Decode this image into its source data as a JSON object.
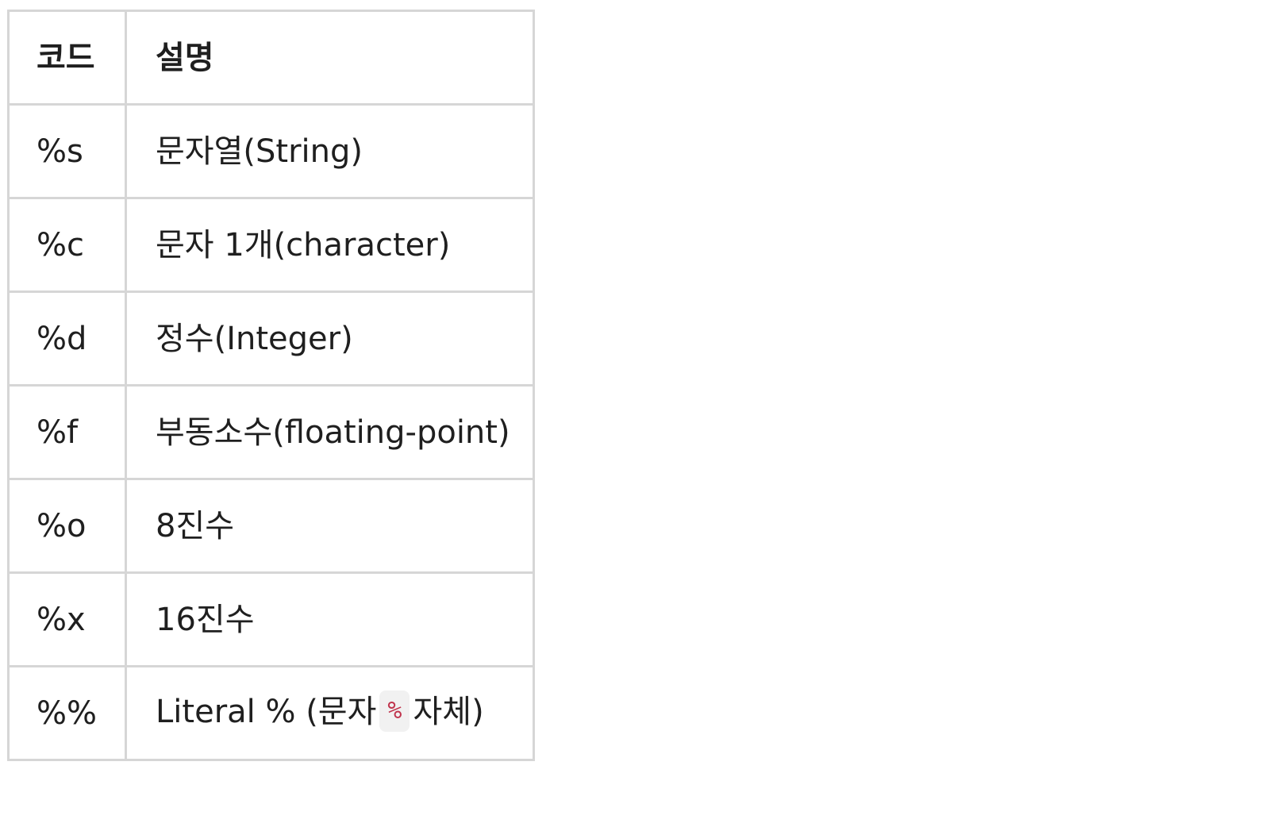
{
  "table": {
    "headers": {
      "code": "코드",
      "description": "설명"
    },
    "rows": [
      {
        "code": "%s",
        "description": "문자열(String)"
      },
      {
        "code": "%c",
        "description": "문자 1개(character)"
      },
      {
        "code": "%d",
        "description": "정수(Integer)"
      },
      {
        "code": "%f",
        "description": "부동소수(floating-point)"
      },
      {
        "code": "%o",
        "description": "8진수"
      },
      {
        "code": "%x",
        "description": "16진수"
      },
      {
        "code": "%%",
        "description_prefix": "Literal % (문자",
        "description_code": "%",
        "description_suffix": "자체)"
      }
    ]
  },
  "colors": {
    "border": "#d6d6d6",
    "text": "#1f1f1f",
    "inline_code_bg": "#f1f1f1",
    "inline_code_text": "#c0344d"
  }
}
